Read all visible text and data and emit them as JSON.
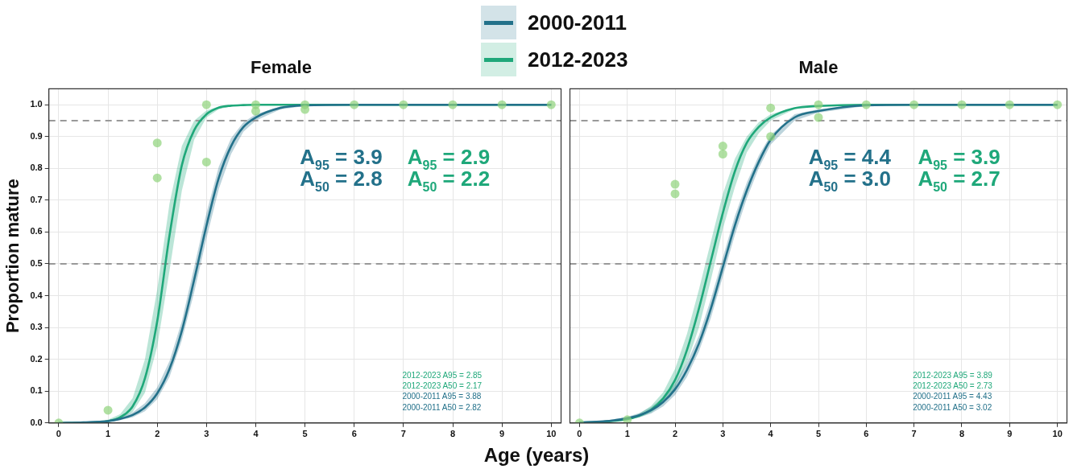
{
  "chart_data": [
    {
      "type": "line",
      "title": "Female",
      "xlabel": "Age (years)",
      "ylabel": "Proportion mature",
      "xlim": [
        -0.2,
        10.2
      ],
      "ylim": [
        0,
        1.05
      ],
      "xticks": [
        0,
        1,
        2,
        3,
        4,
        5,
        6,
        7,
        8,
        9,
        10
      ],
      "yticks": [
        {
          "value": 0,
          "label": "0.0"
        },
        {
          "value": 0.1,
          "label": "0.1"
        },
        {
          "value": 0.2,
          "label": "0.2"
        },
        {
          "value": 0.3,
          "label": "0.3"
        },
        {
          "value": 0.4,
          "label": "0.4"
        },
        {
          "value": 0.5,
          "label": "0.5"
        },
        {
          "value": 0.6,
          "label": "0.6"
        },
        {
          "value": 0.7,
          "label": "0.7"
        },
        {
          "value": 0.8,
          "label": "0.8"
        },
        {
          "value": 0.9,
          "label": "0.9"
        },
        {
          "value": 1,
          "label": "1.0"
        }
      ],
      "grid": true,
      "legend": "top",
      "marker": "circle",
      "ref_lines": [
        {
          "axis": "y",
          "value": 0.95,
          "color": "#999999",
          "line_style": "dashed"
        },
        {
          "axis": "y",
          "value": 0.5,
          "color": "#999999",
          "line_style": "dashed"
        }
      ],
      "annotations": [
        "A$_{95}$ = 3.9",
        "A$_{50}$ = 2.8",
        "A$_{95}$ = 2.9",
        "A$_{50}$ = 2.2",
        "2012-2023 A95 = 2.85",
        "2012-2023 A50 = 2.17",
        "2000-2011 A95 = 3.88",
        "2000-2011 A50 = 2.82"
      ],
      "series": [
        {
          "name": "2000-2011",
          "color": "#23718a",
          "marker": "none",
          "x": [
            0,
            0.5,
            1,
            1.25,
            1.5,
            1.75,
            2,
            2.25,
            2.5,
            2.75,
            3,
            3.25,
            3.5,
            3.75,
            4,
            4.5,
            5,
            6,
            7,
            8,
            9,
            10
          ],
          "values": [
            0,
            0.002,
            0.006,
            0.013,
            0.025,
            0.049,
            0.093,
            0.17,
            0.29,
            0.45,
            0.62,
            0.77,
            0.87,
            0.93,
            0.96,
            0.99,
            0.998,
            1,
            1,
            1,
            1,
            1
          ],
          "lower": [
            0,
            0.001,
            0.004,
            0.009,
            0.018,
            0.037,
            0.075,
            0.145,
            0.26,
            0.41,
            0.58,
            0.735,
            0.845,
            0.915,
            0.95,
            0.985,
            0.996,
            1,
            1,
            1,
            1,
            1
          ],
          "upper": [
            0.001,
            0.003,
            0.009,
            0.018,
            0.033,
            0.062,
            0.112,
            0.195,
            0.32,
            0.49,
            0.66,
            0.805,
            0.895,
            0.945,
            0.97,
            0.994,
            0.999,
            1,
            1,
            1,
            1,
            1
          ]
        },
        {
          "name": "2012-2023",
          "color": "#1fa87a",
          "marker": "none",
          "x": [
            0,
            0.5,
            1,
            1.25,
            1.5,
            1.75,
            2,
            2.25,
            2.5,
            2.75,
            3,
            3.25,
            3.5,
            3.75,
            4,
            4.5,
            5,
            6,
            7,
            8,
            9,
            10
          ],
          "values": [
            0,
            0.001,
            0.006,
            0.018,
            0.052,
            0.14,
            0.32,
            0.59,
            0.81,
            0.92,
            0.97,
            0.991,
            0.997,
            0.999,
            1,
            1,
            1,
            1,
            1,
            1,
            1,
            1
          ],
          "lower": [
            0,
            0,
            0.004,
            0.012,
            0.034,
            0.095,
            0.24,
            0.48,
            0.73,
            0.89,
            0.96,
            0.986,
            0.995,
            null,
            null,
            null,
            null,
            null,
            null,
            null,
            null,
            null
          ],
          "upper": [
            0,
            0.001,
            0.01,
            0.028,
            0.078,
            0.2,
            0.42,
            0.69,
            0.87,
            0.95,
            0.982,
            0.994,
            0.998,
            null,
            null,
            null,
            null,
            null,
            null,
            null,
            null,
            null
          ]
        },
        {
          "type": "scatter",
          "color": "#8fd37a",
          "x": [
            0,
            1,
            2,
            2,
            3,
            3,
            4,
            4,
            5,
            5,
            6,
            7,
            8,
            9,
            10
          ],
          "values": [
            0,
            0.04,
            0.77,
            0.88,
            0.82,
            1,
            0.98,
            1,
            0.985,
            1,
            1,
            1,
            1,
            1,
            1
          ]
        }
      ]
    },
    {
      "type": "line",
      "title": "Male",
      "xlim": [
        -0.2,
        10.2
      ],
      "ylim": [
        0,
        1.05
      ],
      "xticks": [
        0,
        1,
        2,
        3,
        4,
        5,
        6,
        7,
        8,
        9,
        10
      ],
      "yticks": [
        0,
        0.1,
        0.2,
        0.3,
        0.4,
        0.5,
        0.6,
        0.7,
        0.8,
        0.9,
        1
      ],
      "tick_labels": "x",
      "grid": true,
      "marker": "circle",
      "ref_lines": [
        {
          "axis": "y",
          "value": 0.95,
          "color": "#999999",
          "line_style": "dashed"
        },
        {
          "axis": "y",
          "value": 0.5,
          "color": "#999999",
          "line_style": "dashed"
        }
      ],
      "annotations": [
        "A$_{95}$ = 4.4",
        "A$_{50}$ = 3.0",
        "A$_{95}$ = 3.9",
        "A$_{50}$ = 2.7",
        "2012-2023 A95 = 3.89",
        "2012-2023 A50 = 2.73",
        "2000-2011 A95 = 4.43",
        "2000-2011 A50 = 3.02"
      ],
      "series": [
        {
          "color": "#23718a",
          "marker": "none",
          "x": [
            0,
            0.5,
            1,
            1.25,
            1.5,
            1.75,
            2,
            2.25,
            2.5,
            2.75,
            3,
            3.25,
            3.5,
            3.75,
            4,
            4.5,
            5,
            6,
            7,
            8,
            9,
            10
          ],
          "values": [
            0.002,
            0.005,
            0.015,
            0.024,
            0.04,
            0.066,
            0.106,
            0.167,
            0.25,
            0.36,
            0.49,
            0.62,
            0.73,
            0.82,
            0.89,
            0.96,
            0.98,
            0.998,
            1,
            1,
            1,
            1
          ],
          "lower": [
            0.001,
            0.003,
            0.01,
            0.017,
            0.03,
            0.052,
            0.088,
            0.145,
            0.225,
            0.33,
            0.46,
            0.59,
            0.705,
            0.8,
            0.875,
            0.95,
            0.975,
            0.996,
            1,
            1,
            1,
            1
          ],
          "upper": [
            0.003,
            0.007,
            0.019,
            0.031,
            0.05,
            0.08,
            0.124,
            0.19,
            0.275,
            0.39,
            0.52,
            0.65,
            0.755,
            0.84,
            0.905,
            0.97,
            0.986,
            0.999,
            1,
            1,
            1,
            1
          ]
        },
        {
          "color": "#1fa87a",
          "marker": "none",
          "x": [
            0,
            0.5,
            1,
            1.25,
            1.5,
            1.75,
            2,
            2.25,
            2.5,
            2.75,
            3,
            3.25,
            3.5,
            3.75,
            4,
            4.5,
            5,
            6,
            7,
            8,
            9,
            10
          ],
          "values": [
            0.001,
            0.004,
            0.012,
            0.023,
            0.042,
            0.077,
            0.135,
            0.23,
            0.36,
            0.51,
            0.66,
            0.79,
            0.88,
            0.93,
            0.96,
            0.989,
            0.996,
            1,
            1,
            1,
            1,
            1
          ],
          "lower": [
            0.001,
            0.003,
            0.009,
            0.018,
            0.033,
            0.061,
            0.11,
            0.19,
            0.3,
            0.45,
            0.61,
            0.74,
            0.85,
            0.91,
            0.95,
            0.986,
            null,
            null,
            null,
            null,
            null,
            null
          ],
          "upper": [
            0.001,
            0.004,
            0.016,
            0.029,
            0.054,
            0.096,
            0.17,
            0.28,
            0.42,
            0.57,
            0.72,
            0.83,
            0.9,
            0.945,
            0.97,
            0.991,
            null,
            null,
            null,
            null,
            null,
            null
          ]
        },
        {
          "type": "scatter",
          "color": "#8fd37a",
          "x": [
            0,
            1,
            2,
            2,
            3,
            3,
            4,
            4,
            5,
            5,
            6,
            7,
            8,
            9,
            10
          ],
          "values": [
            0,
            0.01,
            0.72,
            0.75,
            0.845,
            0.87,
            0.9,
            0.99,
            0.96,
            1,
            1,
            1,
            1,
            1,
            1
          ]
        }
      ]
    }
  ]
}
